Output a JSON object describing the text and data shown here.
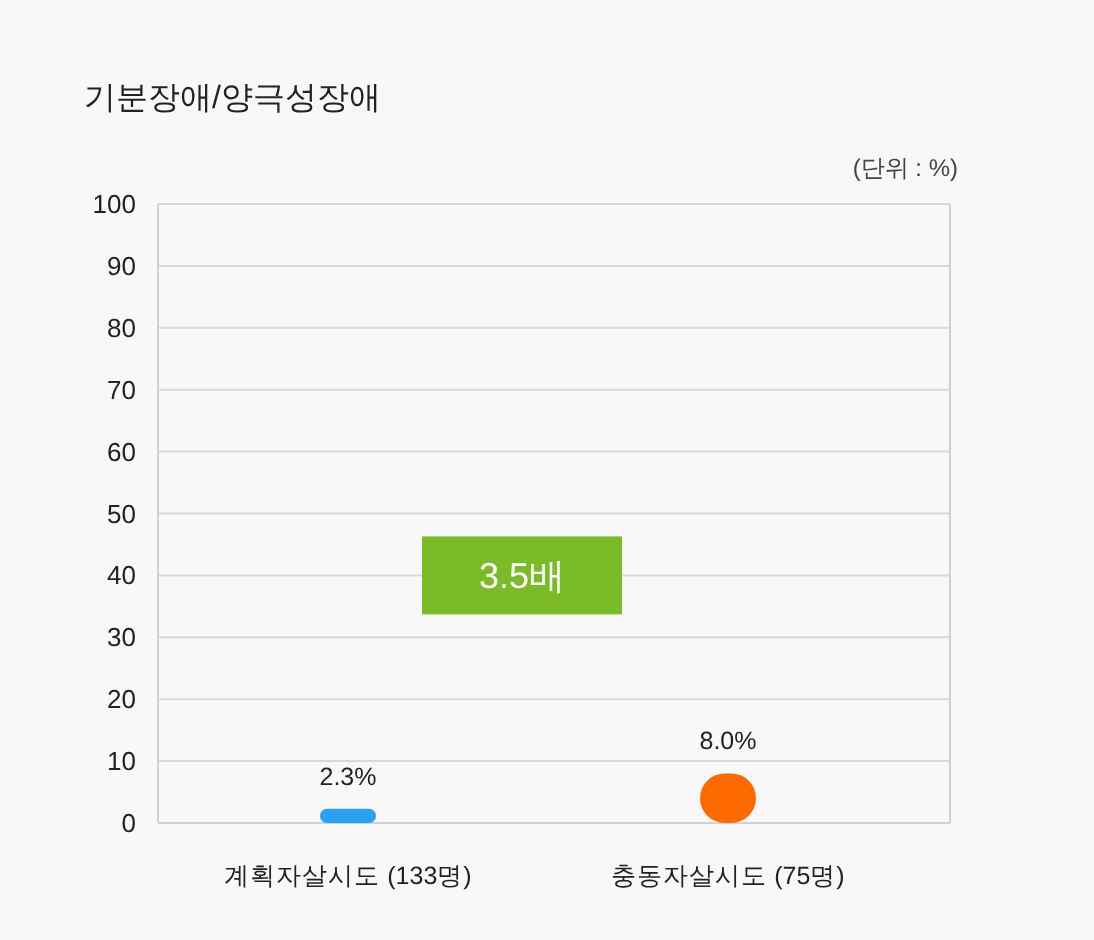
{
  "chart_data": {
    "type": "bar",
    "title": "기분장애/양극성장애",
    "ylabel": "(단위 : %)",
    "categories": [
      "계획자살시도 (133명)",
      "충동자살시도 (75명)"
    ],
    "values": [
      2.3,
      8.0
    ],
    "colors": [
      "#2aa1f3",
      "#ff6a00"
    ],
    "value_labels": [
      "2.3%",
      "8.0%"
    ],
    "ylim": [
      0,
      100
    ],
    "yticks": [
      0,
      10,
      20,
      30,
      40,
      50,
      60,
      70,
      80,
      90,
      100
    ],
    "grid": "y",
    "annotations": [
      "3.5배"
    ]
  }
}
